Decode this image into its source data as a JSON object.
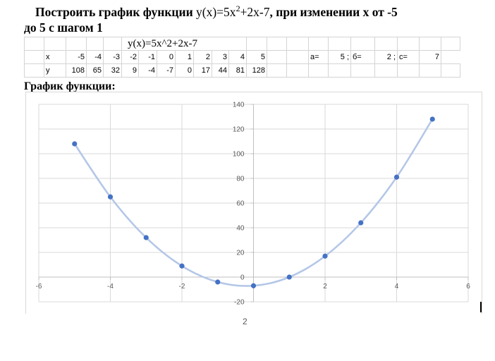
{
  "document": {
    "heading_prefix": "Построить график функции ",
    "heading_formula_a": "y(x)=5x",
    "heading_exponent": "2",
    "heading_formula_b": "+2x-7",
    "heading_suffix": ", при изменении x от -5",
    "heading_line2": "до 5 с шагом 1",
    "subheading": "График функции:",
    "page_number": "2"
  },
  "sheet": {
    "formula_cell": "y(x)=5x^2+2x-7",
    "x_label": "x",
    "y_label": "y",
    "x_values": [
      "-5",
      "-4",
      "-3",
      "-2",
      "-1",
      "0",
      "1",
      "2",
      "3",
      "4",
      "5"
    ],
    "y_values": [
      "108",
      "65",
      "32",
      "9",
      "-4",
      "-7",
      "0",
      "17",
      "44",
      "81",
      "128"
    ],
    "params": {
      "a_label": "a=",
      "a_value": "5 ;",
      "b_label": "б=",
      "b_value": "2 ;",
      "c_label": "c=",
      "c_value": "7"
    }
  },
  "chart_data": {
    "type": "scatter",
    "title": "",
    "xlabel": "",
    "ylabel": "",
    "x": [
      -5,
      -4,
      -3,
      -2,
      -1,
      0,
      1,
      2,
      3,
      4,
      5
    ],
    "y": [
      108,
      65,
      32,
      9,
      -4,
      -7,
      0,
      17,
      44,
      81,
      128
    ],
    "xlim": [
      -6,
      6
    ],
    "ylim": [
      -20,
      140
    ],
    "x_ticks": [
      -6,
      -4,
      -2,
      0,
      2,
      4,
      6
    ],
    "y_ticks": [
      -20,
      0,
      20,
      40,
      60,
      80,
      100,
      120,
      140
    ],
    "grid": true,
    "smoothed_line": true,
    "line_color": "#b4c7e7",
    "marker_color": "#4472c4",
    "grid_color": "#d9d9d9",
    "axis_color": "#bfbfbf",
    "label_color": "#595959"
  }
}
